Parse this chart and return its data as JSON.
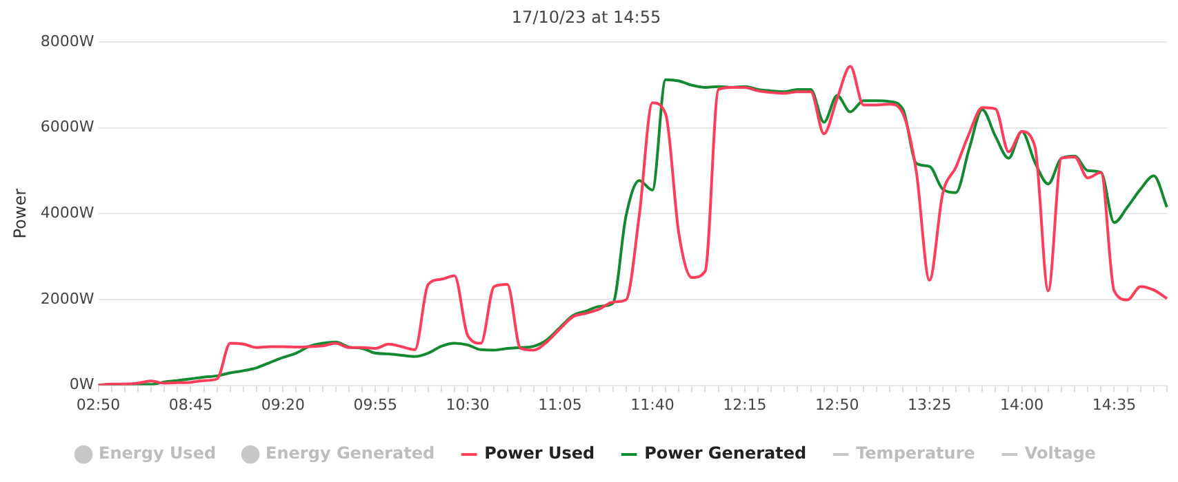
{
  "chart_data": {
    "type": "line",
    "title": "17/10/23 at 14:55",
    "ylabel": "Power",
    "categories": [
      "02:50",
      null,
      null,
      null,
      null,
      null,
      null,
      "08:45",
      null,
      null,
      null,
      null,
      null,
      null,
      "09:20",
      null,
      null,
      null,
      null,
      null,
      null,
      "09:55",
      null,
      null,
      null,
      null,
      null,
      null,
      "10:30",
      null,
      null,
      null,
      null,
      null,
      null,
      "11:05",
      null,
      null,
      null,
      null,
      null,
      null,
      "11:40",
      null,
      null,
      null,
      null,
      null,
      null,
      "12:15",
      null,
      null,
      null,
      null,
      null,
      null,
      "12:50",
      null,
      null,
      null,
      null,
      null,
      null,
      "13:25",
      null,
      null,
      null,
      null,
      null,
      null,
      "14:00",
      null,
      null,
      null,
      null,
      null,
      null,
      "14:35",
      null,
      null,
      null,
      null
    ],
    "series": [
      {
        "name": "Energy Used",
        "type": "scatter",
        "color": "#c8c8c8",
        "values": [
          null,
          null,
          null,
          null,
          null,
          null,
          null,
          null,
          null,
          null,
          null,
          null,
          null,
          null,
          null,
          null,
          null,
          null,
          null,
          null,
          null,
          null,
          null,
          null,
          null,
          null,
          null,
          null,
          null,
          null,
          null,
          null,
          null,
          null,
          null,
          null,
          null,
          null,
          null,
          null,
          null,
          null,
          null,
          null,
          null,
          null,
          null,
          null,
          null,
          null,
          null,
          null,
          null,
          null,
          null,
          null,
          null,
          null,
          null,
          null,
          null,
          null,
          null,
          null,
          null,
          null,
          null,
          null,
          null,
          null,
          null,
          null,
          null,
          null,
          null,
          null,
          null,
          null,
          null,
          null,
          null,
          null
        ]
      },
      {
        "name": "Energy Generated",
        "type": "scatter",
        "color": "#c8c8c8",
        "values": [
          null,
          null,
          null,
          null,
          null,
          null,
          null,
          null,
          null,
          null,
          null,
          null,
          null,
          null,
          null,
          null,
          null,
          null,
          null,
          null,
          null,
          null,
          null,
          null,
          null,
          null,
          null,
          null,
          null,
          null,
          null,
          null,
          null,
          null,
          null,
          null,
          null,
          null,
          null,
          null,
          null,
          null,
          null,
          null,
          null,
          null,
          null,
          null,
          null,
          null,
          null,
          null,
          null,
          null,
          null,
          null,
          null,
          null,
          null,
          null,
          null,
          null,
          null,
          null,
          null,
          null,
          null,
          null,
          null,
          null,
          null,
          null,
          null,
          null,
          null,
          null,
          null,
          null,
          null,
          null,
          null,
          null
        ]
      },
      {
        "name": "Power Used",
        "color": "#fe3d5b",
        "values": [
          0,
          30,
          30,
          50,
          100,
          50,
          60,
          70,
          110,
          150,
          980,
          960,
          880,
          900,
          900,
          890,
          900,
          920,
          980,
          880,
          880,
          860,
          960,
          900,
          830,
          2350,
          2470,
          2550,
          1160,
          980,
          2300,
          2350,
          860,
          820,
          1010,
          1320,
          1600,
          1680,
          1780,
          1940,
          1990,
          3950,
          6580,
          6320,
          3540,
          2510,
          2660,
          6890,
          6940,
          6940,
          6860,
          6820,
          6800,
          6840,
          6840,
          5860,
          6680,
          7430,
          6530,
          6530,
          6550,
          6320,
          4980,
          2450,
          4460,
          5080,
          5860,
          6470,
          6440,
          5440,
          5910,
          5550,
          2200,
          5290,
          5320,
          4830,
          4960,
          2200,
          1990,
          2300,
          2220,
          2020
        ]
      },
      {
        "name": "Power Generated",
        "color": "#138a32",
        "values": [
          0,
          20,
          20,
          20,
          20,
          80,
          110,
          150,
          190,
          220,
          290,
          340,
          410,
          530,
          650,
          750,
          910,
          980,
          1010,
          890,
          860,
          750,
          730,
          700,
          670,
          750,
          910,
          980,
          940,
          830,
          820,
          860,
          880,
          910,
          1060,
          1350,
          1630,
          1730,
          1840,
          1910,
          3950,
          4770,
          4550,
          7120,
          7090,
          6990,
          6940,
          6960,
          6940,
          6960,
          6890,
          6860,
          6840,
          6890,
          6890,
          6130,
          6750,
          6370,
          6630,
          6630,
          6610,
          6420,
          5170,
          5100,
          4570,
          4490,
          5500,
          6420,
          5800,
          5290,
          5910,
          5190,
          4690,
          5290,
          5340,
          5000,
          4960,
          3790,
          4150,
          4570,
          4880,
          4150
        ]
      },
      {
        "name": "Temperature",
        "color": "#c8c8c8",
        "values": [
          null,
          null,
          null,
          null,
          null,
          null,
          null,
          null,
          null,
          null,
          null,
          null,
          null,
          null,
          null,
          null,
          null,
          null,
          null,
          null,
          null,
          null,
          null,
          null,
          null,
          null,
          null,
          null,
          null,
          null,
          null,
          null,
          null,
          null,
          null,
          null,
          null,
          null,
          null,
          null,
          null,
          null,
          null,
          null,
          null,
          null,
          null,
          null,
          null,
          null,
          null,
          null,
          null,
          null,
          null,
          null,
          null,
          null,
          null,
          null,
          null,
          null,
          null,
          null,
          null,
          null,
          null,
          null,
          null,
          null,
          null,
          null,
          null,
          null,
          null,
          null,
          null,
          null,
          null,
          null,
          null,
          null
        ]
      },
      {
        "name": "Voltage",
        "color": "#c8c8c8",
        "values": [
          null,
          null,
          null,
          null,
          null,
          null,
          null,
          null,
          null,
          null,
          null,
          null,
          null,
          null,
          null,
          null,
          null,
          null,
          null,
          null,
          null,
          null,
          null,
          null,
          null,
          null,
          null,
          null,
          null,
          null,
          null,
          null,
          null,
          null,
          null,
          null,
          null,
          null,
          null,
          null,
          null,
          null,
          null,
          null,
          null,
          null,
          null,
          null,
          null,
          null,
          null,
          null,
          null,
          null,
          null,
          null,
          null,
          null,
          null,
          null,
          null,
          null,
          null,
          null,
          null,
          null,
          null,
          null,
          null,
          null,
          null,
          null,
          null,
          null,
          null,
          null,
          null,
          null,
          null,
          null,
          null,
          null
        ]
      }
    ],
    "ylim": [
      0,
      8000
    ],
    "yticks": [
      {
        "value": 0,
        "label": "0W"
      },
      {
        "value": 2000,
        "label": "2000W"
      },
      {
        "value": 4000,
        "label": "4000W"
      },
      {
        "value": 6000,
        "label": "6000W"
      },
      {
        "value": 8000,
        "label": "8000W"
      }
    ],
    "grid": "y",
    "legend": "bottom",
    "marker": "none",
    "line_style": "solid"
  }
}
